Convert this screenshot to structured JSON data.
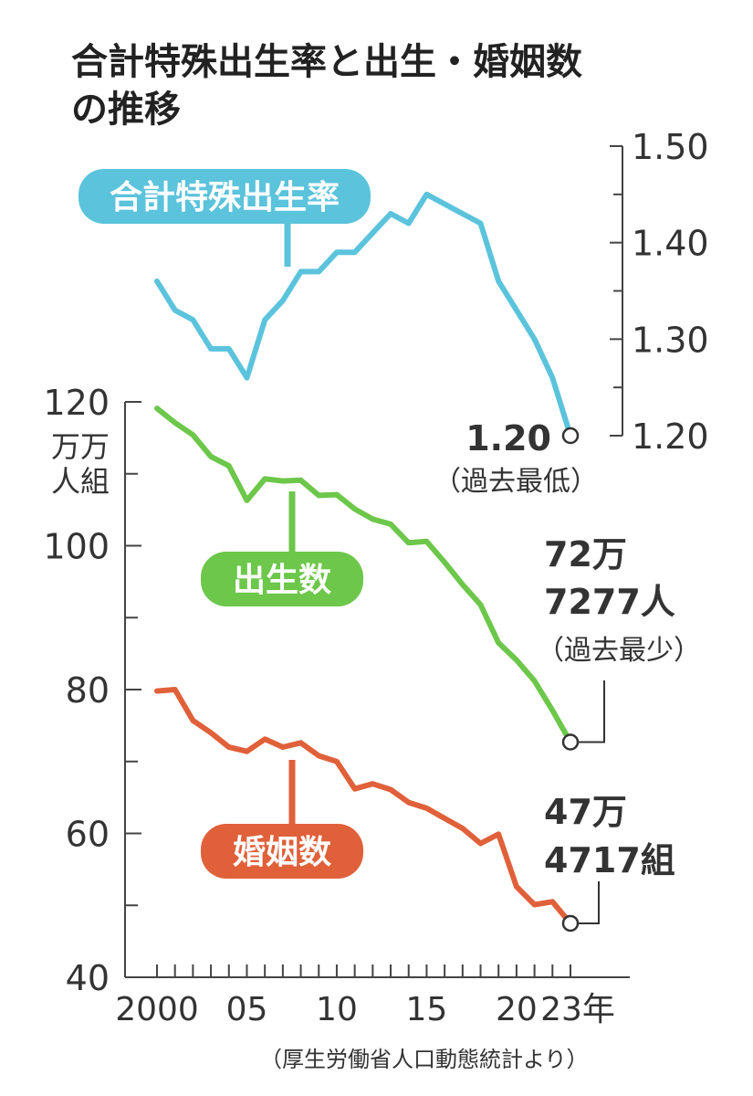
{
  "title": [
    "合計特殊出生率と出生・婚姻数",
    "の推移"
  ],
  "source": "（厚生労働省人口動態統計より）",
  "chart_data": {
    "type": "line",
    "x": [
      2000,
      2001,
      2002,
      2003,
      2004,
      2005,
      2006,
      2007,
      2008,
      2009,
      2010,
      2011,
      2012,
      2013,
      2014,
      2015,
      2016,
      2017,
      2018,
      2019,
      2020,
      2021,
      2022,
      2023
    ],
    "x_tick_labels": [
      {
        "x": 2000,
        "label": "2000"
      },
      {
        "x": 2005,
        "label": "05"
      },
      {
        "x": 2010,
        "label": "10"
      },
      {
        "x": 2015,
        "label": "15"
      },
      {
        "x": 2020,
        "label": "20"
      },
      {
        "x": 2023,
        "label": "23年"
      }
    ],
    "left_axis": {
      "ylim": [
        40,
        120
      ],
      "ticks": [
        40,
        60,
        80,
        100,
        120
      ],
      "unit_lines": [
        "万万",
        "人組"
      ]
    },
    "right_axis": {
      "ylim": [
        1.2,
        1.5
      ],
      "ticks": [
        "1.20",
        "1.30",
        "1.40",
        "1.50"
      ]
    },
    "series": [
      {
        "name": "合計特殊出生率",
        "axis": "right",
        "color": "#5bc3dc",
        "values": [
          1.36,
          1.33,
          1.32,
          1.29,
          1.29,
          1.26,
          1.32,
          1.34,
          1.37,
          1.37,
          1.39,
          1.39,
          1.41,
          1.43,
          1.42,
          1.45,
          1.44,
          1.43,
          1.42,
          1.36,
          1.33,
          1.3,
          1.26,
          1.2
        ],
        "end_label": [
          "1.20",
          "（過去最低）"
        ]
      },
      {
        "name": "出生数",
        "axis": "left",
        "color": "#6cc74a",
        "values": [
          119.1,
          117.1,
          115.4,
          112.4,
          111.1,
          106.3,
          109.3,
          109.0,
          109.1,
          107.0,
          107.1,
          105.1,
          103.7,
          103.0,
          100.4,
          100.6,
          97.7,
          94.6,
          91.8,
          86.5,
          84.1,
          81.2,
          77.1,
          72.7
        ],
        "end_label": [
          "72万",
          "7277人",
          "（過去最少）"
        ]
      },
      {
        "name": "婚姻数",
        "axis": "left",
        "color": "#e0603a",
        "values": [
          79.8,
          80.0,
          75.7,
          74.0,
          72.0,
          71.4,
          73.1,
          72.0,
          72.6,
          70.8,
          70.0,
          66.2,
          66.9,
          66.1,
          64.3,
          63.5,
          62.1,
          60.7,
          58.6,
          59.9,
          52.6,
          50.1,
          50.5,
          47.5
        ],
        "end_label": [
          "47万",
          "4717組"
        ]
      }
    ]
  }
}
